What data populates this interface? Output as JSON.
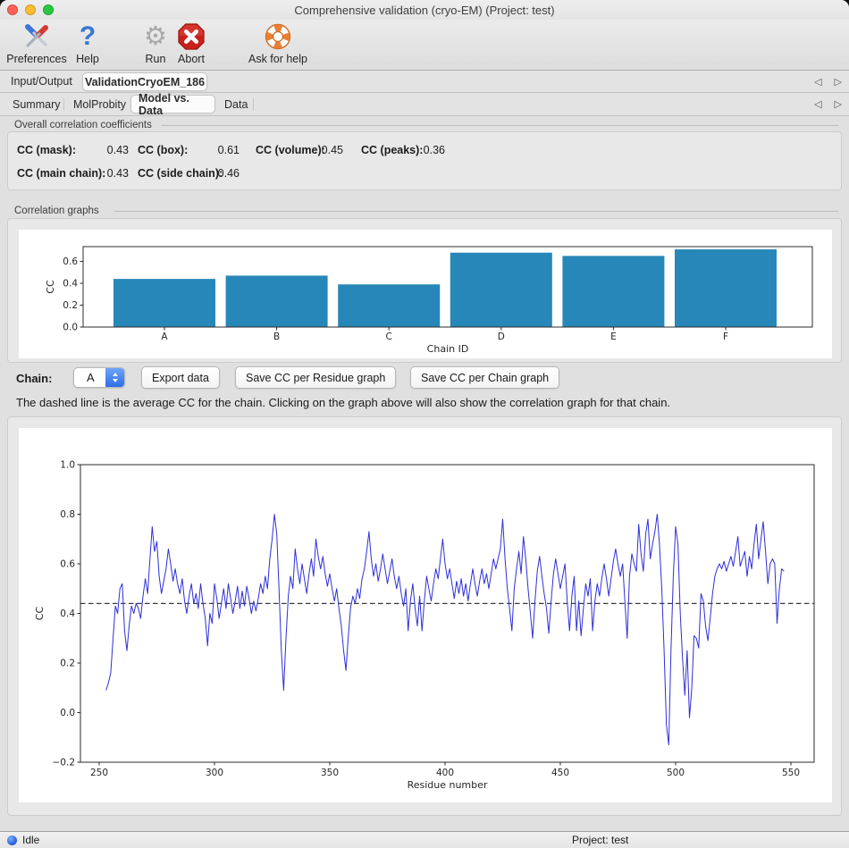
{
  "window": {
    "title": "Comprehensive validation (cryo-EM) (Project: test)"
  },
  "toolbar": {
    "items": [
      {
        "label": "Preferences",
        "icon": "tools-icon"
      },
      {
        "label": "Help",
        "icon": "question-icon"
      },
      {
        "label": "Run",
        "icon": "gear-icon"
      },
      {
        "label": "Abort",
        "icon": "abort-icon"
      },
      {
        "label": "Ask for help",
        "icon": "lifebuoy-icon"
      }
    ]
  },
  "tabs_primary": {
    "items": [
      {
        "label": "Input/Output"
      },
      {
        "label": "ValidationCryoEM_186"
      }
    ],
    "active": "ValidationCryoEM_186"
  },
  "tabs_secondary": {
    "items": [
      {
        "label": "Summary"
      },
      {
        "label": "MolProbity"
      },
      {
        "label": "Model vs. Data"
      },
      {
        "label": "Data"
      }
    ],
    "active": "Model vs. Data"
  },
  "overall_cc": {
    "section_label": "Overall correlation coefficients",
    "items": [
      {
        "label": "CC (mask):",
        "value": "0.43"
      },
      {
        "label": "CC (box):",
        "value": "0.61"
      },
      {
        "label": "CC (volume):",
        "value": "0.45"
      },
      {
        "label": "CC (peaks):",
        "value": "0.36"
      },
      {
        "label": "CC (main chain):",
        "value": "0.43"
      },
      {
        "label": "CC (side chain):",
        "value": "0.46"
      }
    ]
  },
  "correlation_graphs": {
    "section_label": "Correlation graphs"
  },
  "controls": {
    "chain_label": "Chain:",
    "chain_value": "A",
    "buttons": [
      {
        "label": "Export data"
      },
      {
        "label": "Save CC per Residue graph"
      },
      {
        "label": "Save CC per Chain graph"
      }
    ]
  },
  "help_text": "The dashed line is the average CC for the chain. Clicking on the graph above will also show the correlation graph for that chain.",
  "statusbar": {
    "status": "Idle",
    "project": "Project: test"
  },
  "chart_data": [
    {
      "type": "bar",
      "title": "",
      "categories": [
        "A",
        "B",
        "C",
        "D",
        "E",
        "F"
      ],
      "values": [
        0.44,
        0.47,
        0.39,
        0.68,
        0.65,
        0.71
      ],
      "xlabel": "Chain ID",
      "ylabel": "CC",
      "ylim": [
        0,
        0.735
      ],
      "yticks": [
        0.0,
        0.2,
        0.4,
        0.6
      ],
      "bar_color": "#2787b9",
      "grid": false
    },
    {
      "type": "line",
      "title": "",
      "xlabel": "Residue number",
      "ylabel": "CC",
      "xlim": [
        242,
        560
      ],
      "ylim": [
        -0.2,
        1.0
      ],
      "xticks": [
        250,
        300,
        350,
        400,
        450,
        500,
        550
      ],
      "yticks": [
        -0.2,
        0.0,
        0.2,
        0.4,
        0.6,
        0.8,
        1.0
      ],
      "line_color": "#2f2fd8",
      "average_cc": 0.44,
      "average_line_style": "dashed",
      "grid": false,
      "points": [
        [
          253,
          0.09
        ],
        [
          254,
          0.12
        ],
        [
          255,
          0.16
        ],
        [
          256,
          0.3
        ],
        [
          257,
          0.43
        ],
        [
          258,
          0.4
        ],
        [
          259,
          0.5
        ],
        [
          260,
          0.52
        ],
        [
          261,
          0.33
        ],
        [
          262,
          0.25
        ],
        [
          263,
          0.35
        ],
        [
          264,
          0.43
        ],
        [
          265,
          0.4
        ],
        [
          266,
          0.44
        ],
        [
          267,
          0.42
        ],
        [
          268,
          0.38
        ],
        [
          269,
          0.47
        ],
        [
          270,
          0.54
        ],
        [
          271,
          0.48
        ],
        [
          272,
          0.62
        ],
        [
          273,
          0.75
        ],
        [
          274,
          0.65
        ],
        [
          275,
          0.69
        ],
        [
          276,
          0.55
        ],
        [
          277,
          0.48
        ],
        [
          278,
          0.53
        ],
        [
          279,
          0.58
        ],
        [
          280,
          0.66
        ],
        [
          281,
          0.6
        ],
        [
          282,
          0.53
        ],
        [
          283,
          0.58
        ],
        [
          284,
          0.52
        ],
        [
          285,
          0.48
        ],
        [
          286,
          0.54
        ],
        [
          287,
          0.45
        ],
        [
          288,
          0.4
        ],
        [
          289,
          0.47
        ],
        [
          290,
          0.52
        ],
        [
          291,
          0.44
        ],
        [
          292,
          0.48
        ],
        [
          293,
          0.42
        ],
        [
          294,
          0.52
        ],
        [
          295,
          0.44
        ],
        [
          296,
          0.38
        ],
        [
          297,
          0.27
        ],
        [
          298,
          0.4
        ],
        [
          299,
          0.36
        ],
        [
          300,
          0.52
        ],
        [
          301,
          0.46
        ],
        [
          302,
          0.38
        ],
        [
          303,
          0.44
        ],
        [
          304,
          0.5
        ],
        [
          305,
          0.42
        ],
        [
          306,
          0.52
        ],
        [
          307,
          0.46
        ],
        [
          308,
          0.4
        ],
        [
          309,
          0.45
        ],
        [
          310,
          0.51
        ],
        [
          311,
          0.42
        ],
        [
          312,
          0.49
        ],
        [
          313,
          0.43
        ],
        [
          314,
          0.51
        ],
        [
          315,
          0.46
        ],
        [
          316,
          0.4
        ],
        [
          317,
          0.45
        ],
        [
          318,
          0.41
        ],
        [
          319,
          0.46
        ],
        [
          320,
          0.52
        ],
        [
          321,
          0.48
        ],
        [
          322,
          0.55
        ],
        [
          323,
          0.5
        ],
        [
          324,
          0.62
        ],
        [
          325,
          0.7
        ],
        [
          326,
          0.8
        ],
        [
          327,
          0.72
        ],
        [
          328,
          0.5
        ],
        [
          329,
          0.25
        ],
        [
          330,
          0.09
        ],
        [
          331,
          0.3
        ],
        [
          332,
          0.47
        ],
        [
          333,
          0.55
        ],
        [
          334,
          0.5
        ],
        [
          335,
          0.66
        ],
        [
          336,
          0.58
        ],
        [
          337,
          0.52
        ],
        [
          338,
          0.6
        ],
        [
          339,
          0.54
        ],
        [
          340,
          0.48
        ],
        [
          341,
          0.56
        ],
        [
          342,
          0.62
        ],
        [
          343,
          0.55
        ],
        [
          344,
          0.7
        ],
        [
          345,
          0.63
        ],
        [
          346,
          0.58
        ],
        [
          347,
          0.63
        ],
        [
          348,
          0.56
        ],
        [
          349,
          0.51
        ],
        [
          350,
          0.56
        ],
        [
          351,
          0.5
        ],
        [
          352,
          0.45
        ],
        [
          353,
          0.5
        ],
        [
          354,
          0.42
        ],
        [
          355,
          0.35
        ],
        [
          356,
          0.25
        ],
        [
          357,
          0.17
        ],
        [
          358,
          0.3
        ],
        [
          359,
          0.42
        ],
        [
          360,
          0.47
        ],
        [
          361,
          0.44
        ],
        [
          362,
          0.5
        ],
        [
          363,
          0.46
        ],
        [
          364,
          0.54
        ],
        [
          365,
          0.58
        ],
        [
          366,
          0.65
        ],
        [
          367,
          0.73
        ],
        [
          368,
          0.62
        ],
        [
          369,
          0.55
        ],
        [
          370,
          0.6
        ],
        [
          371,
          0.53
        ],
        [
          372,
          0.58
        ],
        [
          373,
          0.64
        ],
        [
          374,
          0.58
        ],
        [
          375,
          0.52
        ],
        [
          376,
          0.57
        ],
        [
          377,
          0.62
        ],
        [
          378,
          0.55
        ],
        [
          379,
          0.5
        ],
        [
          380,
          0.55
        ],
        [
          381,
          0.48
        ],
        [
          382,
          0.43
        ],
        [
          383,
          0.5
        ],
        [
          384,
          0.33
        ],
        [
          385,
          0.45
        ],
        [
          386,
          0.52
        ],
        [
          387,
          0.42
        ],
        [
          388,
          0.35
        ],
        [
          389,
          0.47
        ],
        [
          390,
          0.33
        ],
        [
          391,
          0.45
        ],
        [
          392,
          0.55
        ],
        [
          393,
          0.5
        ],
        [
          394,
          0.45
        ],
        [
          395,
          0.52
        ],
        [
          396,
          0.58
        ],
        [
          397,
          0.54
        ],
        [
          398,
          0.62
        ],
        [
          399,
          0.7
        ],
        [
          400,
          0.6
        ],
        [
          401,
          0.54
        ],
        [
          402,
          0.58
        ],
        [
          403,
          0.52
        ],
        [
          404,
          0.46
        ],
        [
          405,
          0.53
        ],
        [
          406,
          0.48
        ],
        [
          407,
          0.54
        ],
        [
          408,
          0.47
        ],
        [
          409,
          0.52
        ],
        [
          410,
          0.45
        ],
        [
          411,
          0.52
        ],
        [
          412,
          0.58
        ],
        [
          413,
          0.52
        ],
        [
          414,
          0.47
        ],
        [
          415,
          0.53
        ],
        [
          416,
          0.58
        ],
        [
          417,
          0.52
        ],
        [
          418,
          0.56
        ],
        [
          419,
          0.5
        ],
        [
          420,
          0.56
        ],
        [
          421,
          0.62
        ],
        [
          422,
          0.58
        ],
        [
          423,
          0.62
        ],
        [
          424,
          0.66
        ],
        [
          425,
          0.78
        ],
        [
          426,
          0.62
        ],
        [
          427,
          0.5
        ],
        [
          428,
          0.42
        ],
        [
          429,
          0.33
        ],
        [
          430,
          0.5
        ],
        [
          431,
          0.58
        ],
        [
          432,
          0.65
        ],
        [
          433,
          0.56
        ],
        [
          434,
          0.71
        ],
        [
          435,
          0.62
        ],
        [
          436,
          0.5
        ],
        [
          437,
          0.4
        ],
        [
          438,
          0.3
        ],
        [
          439,
          0.45
        ],
        [
          440,
          0.57
        ],
        [
          441,
          0.63
        ],
        [
          442,
          0.55
        ],
        [
          443,
          0.48
        ],
        [
          444,
          0.42
        ],
        [
          445,
          0.32
        ],
        [
          446,
          0.45
        ],
        [
          447,
          0.56
        ],
        [
          448,
          0.62
        ],
        [
          449,
          0.56
        ],
        [
          450,
          0.5
        ],
        [
          451,
          0.55
        ],
        [
          452,
          0.6
        ],
        [
          453,
          0.45
        ],
        [
          454,
          0.33
        ],
        [
          455,
          0.47
        ],
        [
          456,
          0.55
        ],
        [
          457,
          0.33
        ],
        [
          458,
          0.45
        ],
        [
          459,
          0.31
        ],
        [
          460,
          0.42
        ],
        [
          461,
          0.52
        ],
        [
          462,
          0.47
        ],
        [
          463,
          0.54
        ],
        [
          464,
          0.33
        ],
        [
          465,
          0.45
        ],
        [
          466,
          0.52
        ],
        [
          467,
          0.47
        ],
        [
          468,
          0.54
        ],
        [
          469,
          0.6
        ],
        [
          470,
          0.54
        ],
        [
          471,
          0.47
        ],
        [
          472,
          0.54
        ],
        [
          473,
          0.61
        ],
        [
          474,
          0.66
        ],
        [
          475,
          0.6
        ],
        [
          476,
          0.55
        ],
        [
          477,
          0.6
        ],
        [
          478,
          0.45
        ],
        [
          479,
          0.3
        ],
        [
          480,
          0.55
        ],
        [
          481,
          0.64
        ],
        [
          482,
          0.6
        ],
        [
          483,
          0.57
        ],
        [
          484,
          0.76
        ],
        [
          485,
          0.64
        ],
        [
          486,
          0.57
        ],
        [
          487,
          0.72
        ],
        [
          488,
          0.78
        ],
        [
          489,
          0.62
        ],
        [
          490,
          0.68
        ],
        [
          491,
          0.73
        ],
        [
          492,
          0.8
        ],
        [
          493,
          0.68
        ],
        [
          494,
          0.5
        ],
        [
          495,
          0.25
        ],
        [
          496,
          -0.05
        ],
        [
          497,
          -0.13
        ],
        [
          498,
          0.25
        ],
        [
          499,
          0.55
        ],
        [
          500,
          0.75
        ],
        [
          501,
          0.68
        ],
        [
          502,
          0.4
        ],
        [
          503,
          0.22
        ],
        [
          504,
          0.07
        ],
        [
          505,
          0.25
        ],
        [
          506,
          -0.02
        ],
        [
          507,
          0.1
        ],
        [
          508,
          0.31
        ],
        [
          509,
          0.3
        ],
        [
          510,
          0.26
        ],
        [
          511,
          0.48
        ],
        [
          512,
          0.45
        ],
        [
          513,
          0.35
        ],
        [
          514,
          0.29
        ],
        [
          515,
          0.38
        ],
        [
          516,
          0.48
        ],
        [
          517,
          0.55
        ],
        [
          518,
          0.58
        ],
        [
          519,
          0.6
        ],
        [
          520,
          0.58
        ],
        [
          521,
          0.61
        ],
        [
          522,
          0.57
        ],
        [
          523,
          0.6
        ],
        [
          524,
          0.63
        ],
        [
          525,
          0.59
        ],
        [
          526,
          0.65
        ],
        [
          527,
          0.71
        ],
        [
          528,
          0.59
        ],
        [
          529,
          0.62
        ],
        [
          530,
          0.65
        ],
        [
          531,
          0.55
        ],
        [
          532,
          0.63
        ],
        [
          533,
          0.58
        ],
        [
          534,
          0.68
        ],
        [
          535,
          0.76
        ],
        [
          536,
          0.62
        ],
        [
          537,
          0.7
        ],
        [
          538,
          0.77
        ],
        [
          539,
          0.65
        ],
        [
          540,
          0.52
        ],
        [
          541,
          0.6
        ],
        [
          542,
          0.62
        ],
        [
          543,
          0.6
        ],
        [
          544,
          0.36
        ],
        [
          545,
          0.5
        ],
        [
          546,
          0.58
        ],
        [
          547,
          0.57
        ]
      ]
    }
  ]
}
